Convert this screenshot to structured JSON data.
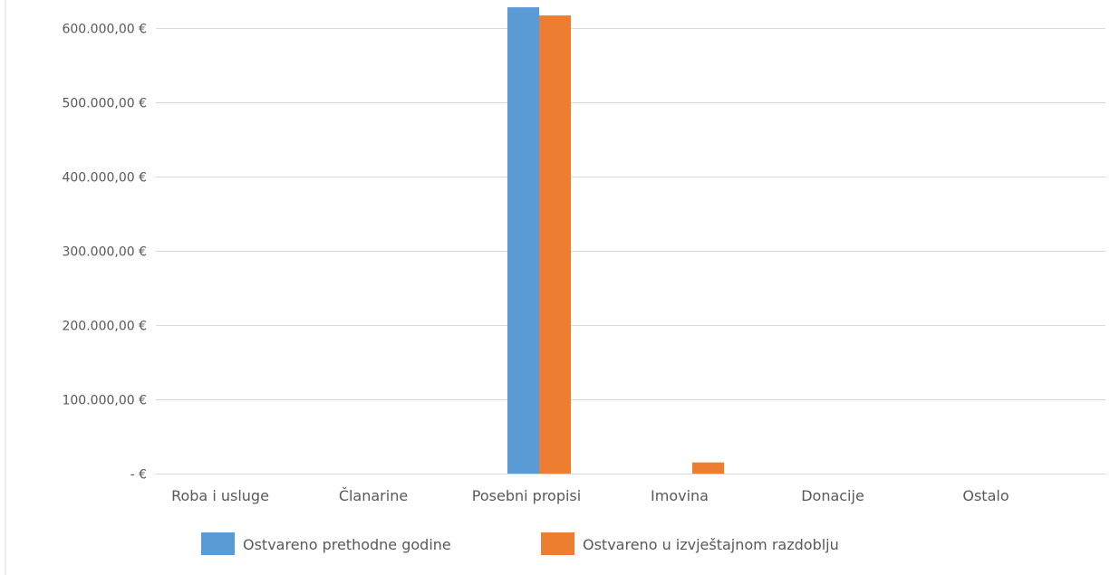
{
  "chart_data": {
    "type": "bar",
    "title": "",
    "xlabel": "",
    "ylabel": "",
    "categories": [
      "Roba i usluge",
      "Članarine",
      "Posebni propisi",
      "Imovina",
      "Donacije",
      "Ostalo"
    ],
    "series": [
      {
        "name": "Ostvareno prethodne godine",
        "color": "#5B9BD5",
        "values": [
          0,
          0,
          628000,
          0,
          0,
          0
        ]
      },
      {
        "name": "Ostvareno u izvještajnom razdoblju",
        "color": "#ED7D31",
        "values": [
          0,
          0,
          617000,
          15000,
          0,
          0
        ]
      }
    ],
    "ylim": [
      0,
      600000
    ],
    "yticks": [
      0,
      100000,
      200000,
      300000,
      400000,
      500000,
      600000
    ],
    "ytick_labels": [
      "-  €",
      "100.000,00 €",
      "200.000,00 €",
      "300.000,00 €",
      "400.000,00 €",
      "500.000,00 €",
      "600.000,00 €"
    ],
    "grid": true,
    "legend_position": "bottom"
  }
}
